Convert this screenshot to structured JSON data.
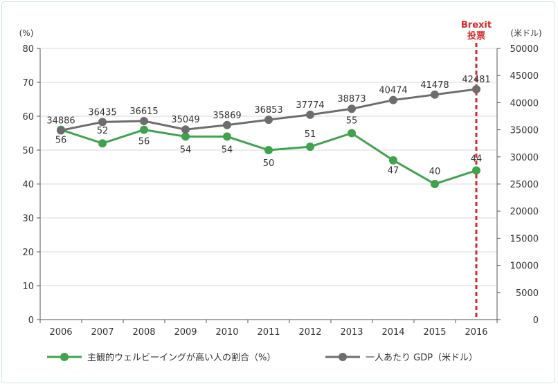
{
  "chart_data": {
    "type": "line",
    "categories": [
      "2006",
      "2007",
      "2008",
      "2009",
      "2010",
      "2011",
      "2012",
      "2013",
      "2014",
      "2015",
      "2016"
    ],
    "left_axis": {
      "unit": "(%)",
      "ylim": [
        0,
        80
      ],
      "ticks": [
        "0",
        "10",
        "20",
        "30",
        "40",
        "50",
        "60",
        "70",
        "80"
      ]
    },
    "right_axis": {
      "unit": "(米ドル)",
      "ylim": [
        0,
        50000
      ],
      "ticks": [
        "0",
        "5000",
        "10000",
        "15000",
        "20000",
        "25000",
        "30000",
        "35000",
        "40000",
        "45000",
        "50000"
      ]
    },
    "series": [
      {
        "name": "主観的ウェルビーイングが高い人の割合（%）",
        "axis": "left",
        "color": "#3fa34d",
        "values": [
          56,
          52,
          56,
          54,
          54,
          50,
          51,
          55,
          47,
          40,
          44
        ],
        "labels": [
          "56",
          "52",
          "56",
          "54",
          "54",
          "50",
          "51",
          "55",
          "47",
          "40",
          "44"
        ]
      },
      {
        "name": "一人あたり GDP（米ドル）",
        "axis": "right",
        "color": "#6d6d6d",
        "values": [
          34886,
          36435,
          36615,
          35049,
          35869,
          36853,
          37774,
          38873,
          40474,
          41478,
          42481
        ],
        "labels": [
          "34886",
          "36435",
          "36615",
          "35049",
          "35869",
          "36853",
          "37774",
          "38873",
          "40474",
          "41478",
          "42481"
        ]
      }
    ],
    "annotation": {
      "lines": [
        "Brexit",
        "投票"
      ],
      "category": "2016",
      "color": "#d42a2a"
    },
    "grid": true,
    "legend_position": "bottom"
  }
}
